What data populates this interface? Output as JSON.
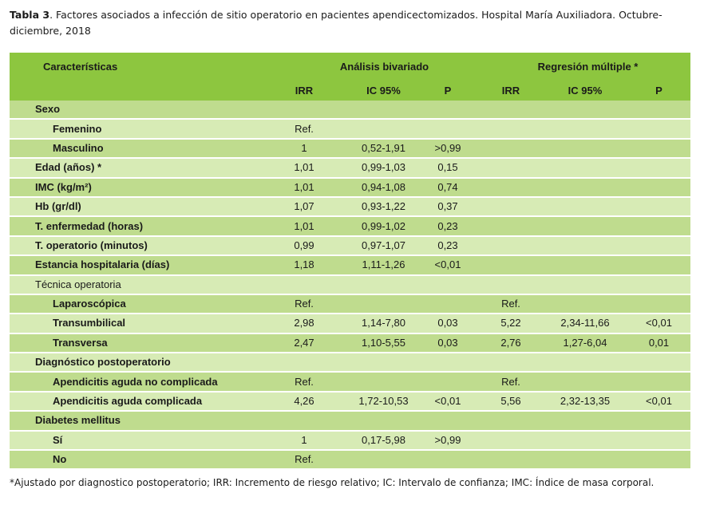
{
  "caption": {
    "label": "Tabla 3",
    "text": ". Factores asociados a infección de sitio operatorio en pacientes apendicectomizados. Hospital María Auxiliadora. Octubre-diciembre, 2018"
  },
  "header": {
    "characteristics": "Características",
    "bivariate": "Análisis bivariado",
    "multiple": "Regresión múltiple *",
    "cols": [
      "IRR",
      "IC 95%",
      "P",
      "IRR",
      "IC 95%",
      "P"
    ]
  },
  "rows": [
    {
      "label": "Sexo",
      "level": 1,
      "cells": [
        "",
        "",
        "",
        "",
        "",
        ""
      ]
    },
    {
      "label": "Femenino",
      "level": 2,
      "cells": [
        "Ref.",
        "",
        "",
        "",
        "",
        ""
      ]
    },
    {
      "label": "Masculino",
      "level": 2,
      "cells": [
        "1",
        "0,52-1,91",
        ">0,99",
        "",
        "",
        ""
      ]
    },
    {
      "label": "Edad (años) *",
      "level": 1,
      "cells": [
        "1,01",
        "0,99-1,03",
        "0,15",
        "",
        "",
        ""
      ]
    },
    {
      "label": "IMC (kg/m²)",
      "level": 1,
      "cells": [
        "1,01",
        "0,94-1,08",
        "0,74",
        "",
        "",
        ""
      ]
    },
    {
      "label": "Hb (gr/dl)",
      "level": 1,
      "cells": [
        "1,07",
        "0,93-1,22",
        "0,37",
        "",
        "",
        ""
      ]
    },
    {
      "label": "T. enfermedad (horas)",
      "level": 1,
      "cells": [
        "1,01",
        "0,99-1,02",
        "0,23",
        "",
        "",
        ""
      ]
    },
    {
      "label": "T. operatorio (minutos)",
      "level": 1,
      "cells": [
        "0,99",
        "0,97-1,07",
        "0,23",
        "",
        "",
        ""
      ]
    },
    {
      "label": "Estancia hospitalaria (días)",
      "level": 1,
      "cells": [
        "1,18",
        "1,11-1,26",
        "<0,01",
        "",
        "",
        ""
      ]
    },
    {
      "label": "Técnica operatoria",
      "level": 0,
      "cells": [
        "",
        "",
        "",
        "",
        "",
        ""
      ]
    },
    {
      "label": "Laparoscópica",
      "level": 2,
      "cells": [
        "Ref.",
        "",
        "",
        "Ref.",
        "",
        ""
      ]
    },
    {
      "label": "Transumbilical",
      "level": 2,
      "cells": [
        "2,98",
        "1,14-7,80",
        "0,03",
        "5,22",
        "2,34-11,66",
        "<0,01"
      ]
    },
    {
      "label": "Transversa",
      "level": 2,
      "cells": [
        "2,47",
        "1,10-5,55",
        "0,03",
        "2,76",
        "1,27-6,04",
        "0,01"
      ]
    },
    {
      "label": "Diagnóstico postoperatorio",
      "level": 1,
      "cells": [
        "",
        "",
        "",
        "",
        "",
        ""
      ]
    },
    {
      "label": "Apendicitis aguda no complicada",
      "level": 2,
      "cells": [
        "Ref.",
        "",
        "",
        "Ref.",
        "",
        ""
      ]
    },
    {
      "label": "Apendicitis aguda complicada",
      "level": 2,
      "cells": [
        "4,26",
        "1,72-10,53",
        "<0,01",
        "5,56",
        "2,32-13,35",
        "<0,01"
      ]
    },
    {
      "label": "Diabetes mellitus",
      "level": 1,
      "cells": [
        "",
        "",
        "",
        "",
        "",
        ""
      ]
    },
    {
      "label": "Sí",
      "level": 2,
      "cells": [
        "1",
        "0,17-5,98",
        ">0,99",
        "",
        "",
        ""
      ]
    },
    {
      "label": "No",
      "level": 2,
      "cells": [
        "Ref.",
        "",
        "",
        "",
        "",
        ""
      ]
    }
  ],
  "footnote": "*Ajustado por diagnostico postoperatorio; IRR: Incremento de riesgo relativo; IC: Intervalo de confianza; IMC: Índice de masa corporal."
}
